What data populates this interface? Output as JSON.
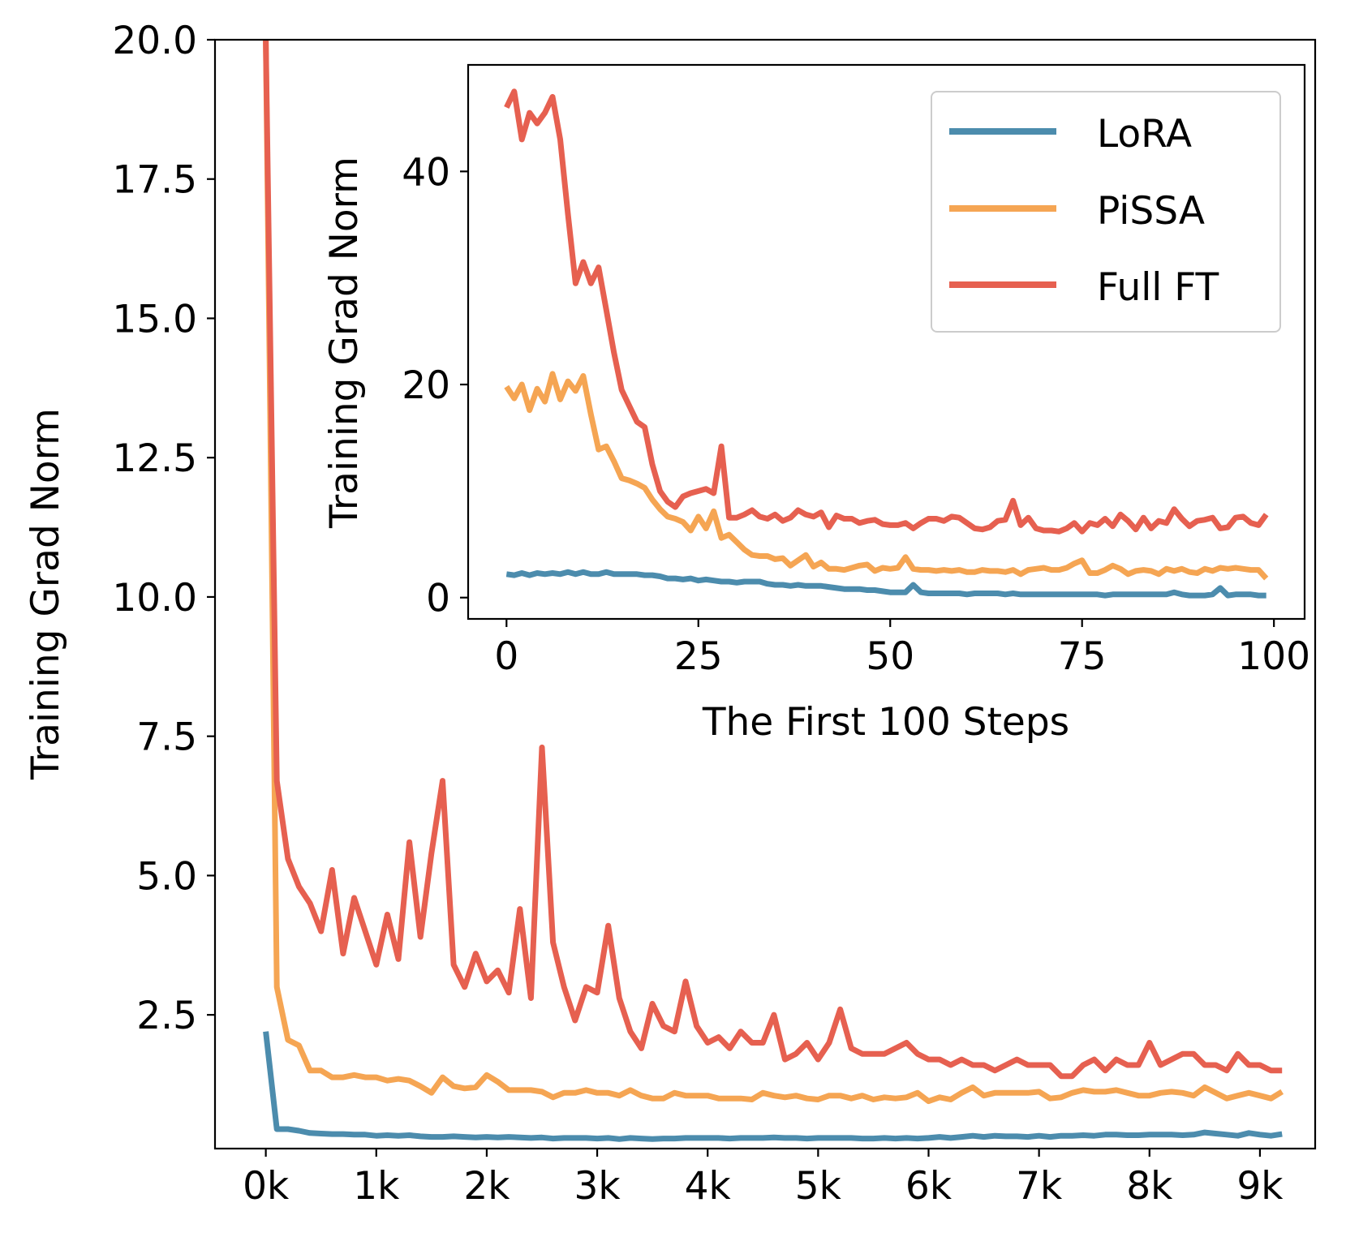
{
  "colors": {
    "lora": "#4c8cad",
    "pissa": "#f5a553",
    "full_ft": "#e66050",
    "axis": "#000000",
    "legend_border": "#cccccc"
  },
  "chart_data": [
    {
      "id": "main",
      "type": "line",
      "title": "",
      "xlabel": "",
      "ylabel": "Training Grad Norm",
      "xlim": [
        -460,
        9500
      ],
      "ylim": [
        0.1,
        20.0
      ],
      "grid": false,
      "x_ticks": [
        0,
        1000,
        2000,
        3000,
        4000,
        5000,
        6000,
        7000,
        8000,
        9000
      ],
      "x_tick_labels": [
        "0k",
        "1k",
        "2k",
        "3k",
        "4k",
        "5k",
        "6k",
        "7k",
        "8k",
        "9k"
      ],
      "y_ticks": [
        2.5,
        5.0,
        7.5,
        10.0,
        12.5,
        15.0,
        17.5,
        20.0
      ],
      "y_tick_labels": [
        "2.5",
        "5.0",
        "7.5",
        "10.0",
        "12.5",
        "15.0",
        "17.5",
        "20.0"
      ],
      "x": [
        0,
        100,
        200,
        300,
        400,
        500,
        600,
        700,
        800,
        900,
        1000,
        1100,
        1200,
        1300,
        1400,
        1500,
        1600,
        1700,
        1800,
        1900,
        2000,
        2100,
        2200,
        2300,
        2400,
        2500,
        2600,
        2700,
        2800,
        2900,
        3000,
        3100,
        3200,
        3300,
        3400,
        3500,
        3600,
        3700,
        3800,
        3900,
        4000,
        4100,
        4200,
        4300,
        4400,
        4500,
        4600,
        4700,
        4800,
        4900,
        5000,
        5100,
        5200,
        5300,
        5400,
        5500,
        5600,
        5700,
        5800,
        5900,
        6000,
        6100,
        6200,
        6300,
        6400,
        6500,
        6600,
        6700,
        6800,
        6900,
        7000,
        7100,
        7200,
        7300,
        7400,
        7500,
        7600,
        7700,
        7800,
        7900,
        8000,
        8100,
        8200,
        8300,
        8400,
        8500,
        8600,
        8700,
        8800,
        8900,
        9000,
        9100,
        9200
      ],
      "series": [
        {
          "name": "LoRA",
          "values": [
            2.2,
            0.45,
            0.45,
            0.42,
            0.38,
            0.37,
            0.36,
            0.36,
            0.35,
            0.35,
            0.33,
            0.34,
            0.33,
            0.34,
            0.32,
            0.31,
            0.31,
            0.32,
            0.31,
            0.3,
            0.31,
            0.3,
            0.31,
            0.3,
            0.29,
            0.3,
            0.28,
            0.29,
            0.29,
            0.29,
            0.28,
            0.29,
            0.27,
            0.29,
            0.28,
            0.27,
            0.28,
            0.28,
            0.29,
            0.29,
            0.29,
            0.29,
            0.28,
            0.29,
            0.29,
            0.29,
            0.3,
            0.29,
            0.29,
            0.28,
            0.29,
            0.29,
            0.29,
            0.29,
            0.28,
            0.28,
            0.29,
            0.28,
            0.29,
            0.28,
            0.29,
            0.31,
            0.29,
            0.31,
            0.33,
            0.31,
            0.33,
            0.32,
            0.32,
            0.31,
            0.33,
            0.31,
            0.33,
            0.33,
            0.34,
            0.33,
            0.35,
            0.35,
            0.34,
            0.34,
            0.35,
            0.35,
            0.35,
            0.34,
            0.35,
            0.39,
            0.37,
            0.35,
            0.33,
            0.38,
            0.35,
            0.33,
            0.36
          ]
        },
        {
          "name": "PiSSA",
          "values": [
            20.0,
            3.0,
            2.05,
            1.95,
            1.5,
            1.5,
            1.38,
            1.38,
            1.42,
            1.38,
            1.38,
            1.32,
            1.35,
            1.32,
            1.22,
            1.1,
            1.38,
            1.22,
            1.18,
            1.2,
            1.42,
            1.3,
            1.15,
            1.15,
            1.15,
            1.12,
            1.02,
            1.1,
            1.1,
            1.15,
            1.1,
            1.1,
            1.05,
            1.15,
            1.05,
            1.0,
            1.0,
            1.1,
            1.05,
            1.05,
            1.05,
            1.0,
            1.0,
            1.0,
            0.98,
            1.1,
            1.05,
            1.02,
            1.05,
            1.0,
            0.98,
            1.05,
            1.05,
            1.0,
            1.05,
            0.98,
            1.02,
            1.0,
            1.02,
            1.1,
            0.95,
            1.02,
            0.98,
            1.1,
            1.2,
            1.05,
            1.1,
            1.1,
            1.1,
            1.1,
            1.12,
            1.0,
            1.02,
            1.1,
            1.15,
            1.12,
            1.12,
            1.15,
            1.1,
            1.05,
            1.05,
            1.1,
            1.12,
            1.1,
            1.05,
            1.2,
            1.1,
            1.0,
            1.05,
            1.1,
            1.05,
            1.0,
            1.12
          ]
        },
        {
          "name": "Full FT",
          "values": [
            20.0,
            6.7,
            5.3,
            4.8,
            4.5,
            4.0,
            5.1,
            3.6,
            4.6,
            4.0,
            3.4,
            4.3,
            3.5,
            5.6,
            3.9,
            5.4,
            6.7,
            3.4,
            3.0,
            3.6,
            3.1,
            3.3,
            2.9,
            4.4,
            2.8,
            7.3,
            3.8,
            3.0,
            2.4,
            3.0,
            2.9,
            4.1,
            2.8,
            2.2,
            1.9,
            2.7,
            2.3,
            2.2,
            3.1,
            2.3,
            2.0,
            2.1,
            1.9,
            2.2,
            2.0,
            2.0,
            2.5,
            1.7,
            1.8,
            2.0,
            1.7,
            2.0,
            2.6,
            1.9,
            1.8,
            1.8,
            1.8,
            1.9,
            2.0,
            1.8,
            1.7,
            1.7,
            1.6,
            1.7,
            1.6,
            1.6,
            1.5,
            1.6,
            1.7,
            1.6,
            1.6,
            1.6,
            1.4,
            1.4,
            1.6,
            1.7,
            1.5,
            1.7,
            1.6,
            1.6,
            2.0,
            1.6,
            1.7,
            1.8,
            1.8,
            1.6,
            1.6,
            1.5,
            1.8,
            1.6,
            1.6,
            1.5,
            1.5
          ]
        }
      ]
    },
    {
      "id": "inset",
      "type": "line",
      "title": "",
      "xlabel": "The First 100 Steps",
      "ylabel": "Training Grad Norm",
      "xlim": [
        -5,
        104
      ],
      "ylim": [
        -2,
        50
      ],
      "grid": false,
      "x_ticks": [
        0,
        25,
        50,
        75,
        100
      ],
      "x_tick_labels": [
        "0",
        "25",
        "50",
        "75",
        "100"
      ],
      "y_ticks": [
        0,
        20,
        40
      ],
      "y_tick_labels": [
        "0",
        "20",
        "40"
      ],
      "x": [
        0,
        1,
        2,
        3,
        4,
        5,
        6,
        7,
        8,
        9,
        10,
        11,
        12,
        13,
        14,
        15,
        16,
        17,
        18,
        19,
        20,
        21,
        22,
        23,
        24,
        25,
        26,
        27,
        28,
        29,
        30,
        31,
        32,
        33,
        34,
        35,
        36,
        37,
        38,
        39,
        40,
        41,
        42,
        43,
        44,
        45,
        46,
        47,
        48,
        49,
        50,
        51,
        52,
        53,
        54,
        55,
        56,
        57,
        58,
        59,
        60,
        61,
        62,
        63,
        64,
        65,
        66,
        67,
        68,
        69,
        70,
        71,
        72,
        73,
        74,
        75,
        76,
        77,
        78,
        79,
        80,
        81,
        82,
        83,
        84,
        85,
        86,
        87,
        88,
        89,
        90,
        91,
        92,
        93,
        94,
        95,
        96,
        97,
        98,
        99
      ],
      "legend": {
        "position": "top-right",
        "labels": [
          "LoRA",
          "PiSSA",
          "Full FT"
        ]
      },
      "series": [
        {
          "name": "LoRA",
          "values": [
            2.2,
            2.1,
            2.3,
            2.1,
            2.3,
            2.2,
            2.3,
            2.2,
            2.4,
            2.2,
            2.4,
            2.2,
            2.2,
            2.4,
            2.2,
            2.2,
            2.2,
            2.2,
            2.1,
            2.1,
            2.0,
            1.8,
            1.8,
            1.7,
            1.8,
            1.6,
            1.7,
            1.6,
            1.5,
            1.5,
            1.4,
            1.5,
            1.5,
            1.5,
            1.3,
            1.2,
            1.2,
            1.1,
            1.2,
            1.1,
            1.1,
            1.1,
            1.0,
            0.9,
            0.8,
            0.8,
            0.8,
            0.7,
            0.7,
            0.6,
            0.5,
            0.5,
            0.5,
            1.2,
            0.5,
            0.4,
            0.4,
            0.4,
            0.4,
            0.4,
            0.3,
            0.4,
            0.4,
            0.4,
            0.4,
            0.3,
            0.4,
            0.3,
            0.3,
            0.3,
            0.3,
            0.3,
            0.3,
            0.3,
            0.3,
            0.3,
            0.3,
            0.3,
            0.2,
            0.3,
            0.3,
            0.3,
            0.3,
            0.3,
            0.3,
            0.3,
            0.3,
            0.5,
            0.3,
            0.2,
            0.2,
            0.2,
            0.3,
            0.9,
            0.2,
            0.3,
            0.3,
            0.3,
            0.2,
            0.2
          ]
        },
        {
          "name": "PiSSA",
          "values": [
            19.8,
            18.7,
            20.0,
            17.6,
            19.6,
            18.4,
            21.0,
            18.6,
            20.3,
            19.4,
            20.8,
            17.2,
            13.9,
            14.2,
            12.8,
            11.2,
            11.0,
            10.7,
            10.3,
            9.2,
            8.3,
            7.6,
            7.4,
            7.1,
            6.3,
            7.6,
            6.5,
            8.1,
            5.6,
            5.9,
            5.2,
            4.5,
            4.0,
            3.9,
            3.9,
            3.6,
            3.7,
            3.0,
            3.5,
            4.0,
            2.9,
            3.3,
            2.7,
            2.7,
            2.6,
            2.8,
            3.0,
            3.1,
            2.5,
            2.8,
            2.7,
            2.8,
            3.8,
            2.7,
            2.6,
            2.6,
            2.5,
            2.6,
            2.5,
            2.6,
            2.4,
            2.4,
            2.6,
            2.5,
            2.5,
            2.4,
            2.6,
            2.2,
            2.6,
            2.7,
            2.8,
            2.6,
            2.6,
            2.8,
            3.2,
            3.5,
            2.3,
            2.3,
            2.6,
            3.0,
            2.7,
            2.2,
            2.5,
            2.6,
            2.5,
            2.2,
            2.7,
            2.5,
            2.7,
            2.4,
            2.3,
            2.7,
            2.5,
            2.8,
            2.7,
            2.8,
            2.7,
            2.6,
            2.6,
            1.8
          ]
        },
        {
          "name": "Full FT",
          "values": [
            46.0,
            47.5,
            43.0,
            45.5,
            44.5,
            45.5,
            47.0,
            43.0,
            36.0,
            29.5,
            31.5,
            29.5,
            31.0,
            27.0,
            23.0,
            19.5,
            18.0,
            16.5,
            16.0,
            12.5,
            10.0,
            9.0,
            8.5,
            9.5,
            9.8,
            10.0,
            10.2,
            9.8,
            14.2,
            7.5,
            7.5,
            7.8,
            8.2,
            7.6,
            7.4,
            7.8,
            7.2,
            7.5,
            8.2,
            7.8,
            7.6,
            8.0,
            6.6,
            7.7,
            7.4,
            7.4,
            7.0,
            7.2,
            7.3,
            6.9,
            6.8,
            6.8,
            7.0,
            6.5,
            7.0,
            7.4,
            7.4,
            7.2,
            7.6,
            7.5,
            7.0,
            6.5,
            6.4,
            6.6,
            7.2,
            7.3,
            9.1,
            6.8,
            7.5,
            6.5,
            6.3,
            6.3,
            6.2,
            6.5,
            7.0,
            6.2,
            7.0,
            6.8,
            7.4,
            6.7,
            7.8,
            7.2,
            6.4,
            7.5,
            6.5,
            7.2,
            7.0,
            8.3,
            7.4,
            6.7,
            7.2,
            7.3,
            7.5,
            6.5,
            6.6,
            7.5,
            7.6,
            7.0,
            6.8,
            7.8
          ]
        }
      ]
    }
  ]
}
